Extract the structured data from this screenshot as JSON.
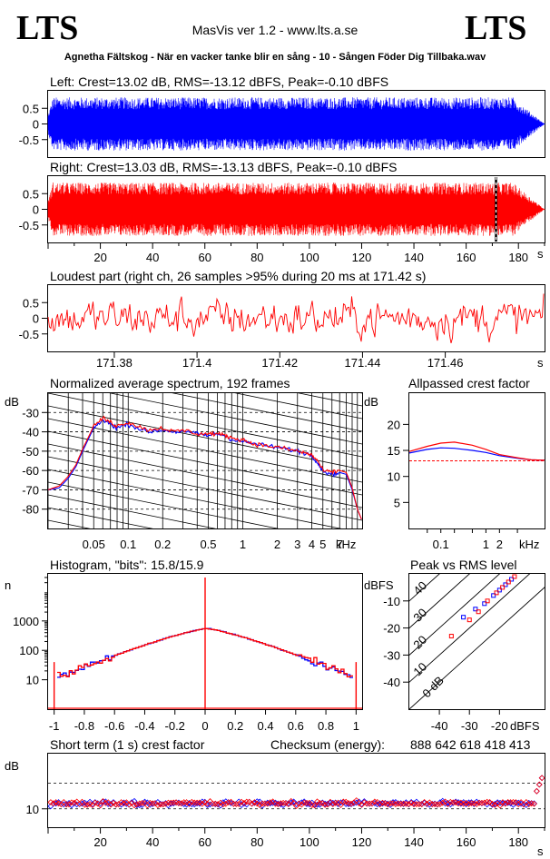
{
  "header": {
    "logo_left": "LTS",
    "logo_right": "LTS",
    "app_title": "MasVis ver 1.2 - www.lts.a.se",
    "file_title": "Agnetha Fältskog - När en vacker tanke blir en sång - 10 - Sången Föder Dig Tillbaka.wav"
  },
  "colors": {
    "left": "#0000ff",
    "right": "#ff0000"
  },
  "chart_data": [
    {
      "type": "line",
      "title": "Left: Crest=13.02 dB, RMS=-13.12 dBFS, Peak=-0.10 dBFS",
      "yticks": [
        "0.5",
        "0",
        "-0.5"
      ],
      "ylim": [
        -1,
        1
      ],
      "series": [
        {
          "name": "Left",
          "color": "#0000ff"
        }
      ]
    },
    {
      "type": "line",
      "title": "Right: Crest=13.03 dB, RMS=-13.13 dBFS, Peak=-0.10 dBFS",
      "yticks": [
        "0.5",
        "0",
        "-0.5"
      ],
      "xticks": [
        "20",
        "40",
        "60",
        "80",
        "100",
        "120",
        "140",
        "160",
        "180"
      ],
      "xunit": "s",
      "xlim": [
        0,
        190
      ],
      "loudest_marker_s": 171.42,
      "series": [
        {
          "name": "Right",
          "color": "#ff0000"
        }
      ]
    },
    {
      "type": "line",
      "title": "Loudest part (right ch, 26 samples >95% during 20 ms at 171.42 s)",
      "yticks": [
        "0.5",
        "0",
        "-0.5"
      ],
      "xticks": [
        "171.38",
        "171.4",
        "171.42",
        "171.44",
        "171.46"
      ],
      "xunit": "s",
      "xlim": [
        171.364,
        171.484
      ]
    },
    {
      "type": "line",
      "title": "Normalized average spectrum, 192 frames",
      "ylabel": "dB",
      "yticks": [
        "-30",
        "-40",
        "-50",
        "-60",
        "-70",
        "-80"
      ],
      "xticks": [
        "0.05",
        "0.1",
        "0.2",
        "0.5",
        "1",
        "2",
        "3",
        "4",
        "5",
        "7"
      ],
      "xunit": "kHz",
      "ylim": [
        -90,
        -20
      ],
      "x_khz": [
        0.02,
        0.025,
        0.03,
        0.035,
        0.04,
        0.05,
        0.06,
        0.07,
        0.08,
        0.1,
        0.12,
        0.15,
        0.2,
        0.25,
        0.3,
        0.4,
        0.5,
        0.6,
        0.7,
        0.8,
        1,
        1.2,
        1.5,
        2,
        2.5,
        3,
        3.5,
        4,
        4.5,
        5,
        6,
        7,
        8,
        9,
        10,
        11
      ],
      "series": [
        {
          "name": "Left",
          "color": "#0000ff",
          "values": [
            -70,
            -69,
            -64,
            -58,
            -50,
            -38,
            -34,
            -36,
            -38,
            -36,
            -38,
            -40,
            -39,
            -40,
            -40,
            -41,
            -42,
            -41,
            -42,
            -44,
            -45,
            -46,
            -47,
            -48,
            -49,
            -50,
            -51,
            -52,
            -56,
            -60,
            -62,
            -61,
            -62,
            -70,
            -80,
            -86
          ]
        },
        {
          "name": "Right",
          "color": "#ff0000",
          "values": [
            -70,
            -68,
            -63,
            -57,
            -49,
            -37,
            -33,
            -35,
            -37,
            -35,
            -37,
            -39,
            -38,
            -40,
            -39,
            -41,
            -41,
            -41,
            -42,
            -43,
            -44,
            -46,
            -47,
            -48,
            -49,
            -50,
            -51,
            -52,
            -55,
            -60,
            -61,
            -60,
            -61,
            -69,
            -80,
            -86
          ]
        }
      ]
    },
    {
      "type": "line",
      "title": "Allpassed crest factor",
      "ylabel": "dB",
      "yticks": [
        "20",
        "15",
        "10",
        "5"
      ],
      "xticks": [
        "0.1",
        "1",
        "2"
      ],
      "xunit": "kHz",
      "ylim": [
        0,
        26
      ],
      "reference_db": 13,
      "x_khz": [
        0.02,
        0.05,
        0.1,
        0.2,
        0.5,
        1,
        2,
        5,
        10,
        20
      ],
      "series": [
        {
          "name": "Left",
          "color": "#0000ff",
          "values": [
            14.5,
            15.2,
            15.5,
            15.4,
            15.0,
            14.6,
            14.0,
            13.5,
            13.2,
            13.1
          ]
        },
        {
          "name": "Right",
          "color": "#ff0000",
          "values": [
            14.8,
            15.8,
            16.4,
            16.6,
            16.0,
            15.2,
            14.2,
            13.6,
            13.2,
            13.1
          ]
        }
      ]
    },
    {
      "type": "line",
      "title": "Histogram, \"bits\": 15.8/15.9",
      "ylabel": "n",
      "yticks": [
        "1000",
        "100",
        "10"
      ],
      "xticks": [
        "-1",
        "-0.8",
        "-0.6",
        "-0.4",
        "-0.2",
        "0",
        "0.2",
        "0.4",
        "0.6",
        "0.8",
        "1"
      ],
      "xlim": [
        -1.04,
        1.04
      ],
      "series": [
        {
          "name": "Left",
          "color": "#0000ff"
        },
        {
          "name": "Right",
          "color": "#ff0000"
        }
      ]
    },
    {
      "type": "scatter",
      "title": "Peak vs RMS level",
      "ylabel": "dBFS",
      "xlabel": "dBFS",
      "yticks": [
        "-10",
        "-20",
        "-30",
        "-40"
      ],
      "xticks": [
        "-40",
        "-30",
        "-20"
      ],
      "diag_labels": [
        "40",
        "30",
        "20",
        "10",
        "0 dB"
      ],
      "xlim": [
        -50,
        -5
      ],
      "ylim": [
        -50,
        0
      ],
      "series": [
        {
          "name": "Left",
          "color": "#0000ff",
          "points": [
            [
              -32,
              -16
            ],
            [
              -28,
              -13
            ],
            [
              -25,
              -11
            ],
            [
              -22,
              -8
            ],
            [
              -20,
              -6
            ],
            [
              -18,
              -4
            ],
            [
              -16,
              -2
            ]
          ]
        },
        {
          "name": "Right",
          "color": "#ff0000",
          "points": [
            [
              -36,
              -23
            ],
            [
              -30,
              -17
            ],
            [
              -27,
              -14
            ],
            [
              -24,
              -10
            ],
            [
              -21,
              -7
            ],
            [
              -19,
              -5
            ],
            [
              -17,
              -3
            ],
            [
              -15,
              -1
            ]
          ]
        }
      ]
    },
    {
      "type": "scatter",
      "title": "Short term (1 s) crest factor",
      "checksum_label": "Checksum (energy):",
      "checksum_value": "888 642 618 418 413",
      "ylabel": "dB",
      "yticks": [
        "10"
      ],
      "xticks": [
        "20",
        "40",
        "60",
        "80",
        "100",
        "120",
        "140",
        "160",
        "180"
      ],
      "xunit": "s",
      "xlim": [
        0,
        190
      ],
      "ylim": [
        5,
        25
      ],
      "ref_lines_db": [
        10,
        17
      ],
      "series": [
        {
          "name": "Left",
          "color": "#0000ff"
        },
        {
          "name": "Right",
          "color": "#ff0000"
        }
      ]
    }
  ]
}
